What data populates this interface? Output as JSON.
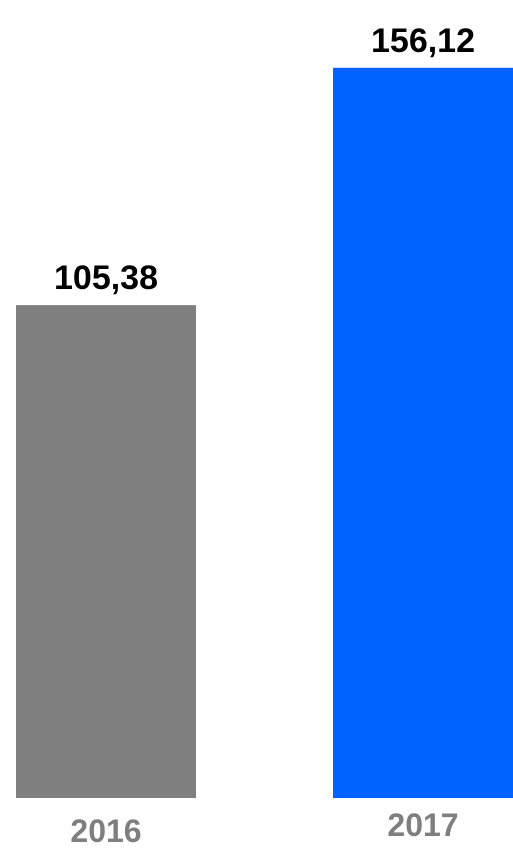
{
  "chart_data": {
    "type": "bar",
    "categories": [
      "2016",
      "2017"
    ],
    "values": [
      105.38,
      156.12
    ],
    "value_labels": [
      "105,38",
      "156,12"
    ],
    "bar_colors": [
      "#7f7f7f",
      "#0062ff"
    ],
    "category_label_color": "#7f7f7f",
    "value_label_color": "#000000",
    "ylim": [
      0,
      158
    ],
    "grid": false,
    "legend": "none",
    "axes_visible": false
  }
}
